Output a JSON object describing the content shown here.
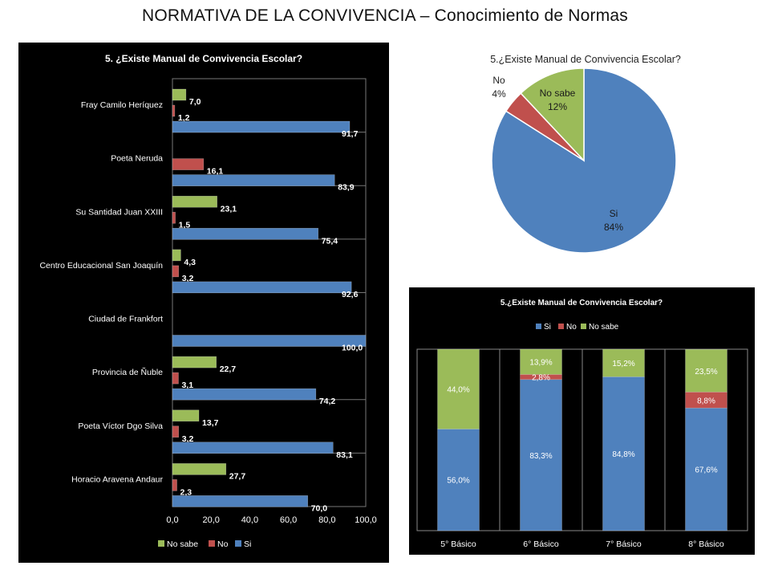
{
  "slide": {
    "title": "NORMATIVA DE LA CONVIVENCIA – Conocimiento de Normas"
  },
  "colors": {
    "si": "#4f81bd",
    "no": "#c0504d",
    "nosabe": "#9bbb59",
    "panel_bg": "#000000"
  },
  "chart_data": [
    {
      "type": "bar",
      "orientation": "horizontal",
      "title": "5. ¿Existe Manual de Convivencia Escolar?",
      "categories": [
        "Fray Camilo Heríquez",
        "Poeta Neruda",
        "Su Santidad Juan XXIII",
        "Centro Educacional San Joaquín",
        "Ciudad de Frankfort",
        "Provincia de Ñuble",
        "Poeta Víctor Dgo Silva",
        "Horacio Aravena Andaur"
      ],
      "series": [
        {
          "name": "No sabe",
          "values": [
            7.0,
            null,
            23.1,
            4.3,
            null,
            22.7,
            13.7,
            27.7
          ],
          "labels": [
            "7,0",
            "",
            "23,1",
            "4,3",
            "",
            "22,7",
            "13,7",
            "27,7"
          ]
        },
        {
          "name": "No",
          "values": [
            1.2,
            16.1,
            1.5,
            3.2,
            null,
            3.1,
            3.2,
            2.3
          ],
          "labels": [
            "1,2",
            "16,1",
            "1,5",
            "3,2",
            "",
            "3,1",
            "3,2",
            "2,3"
          ]
        },
        {
          "name": "Si",
          "values": [
            91.7,
            83.9,
            75.4,
            92.6,
            100.0,
            74.2,
            83.1,
            70.0
          ],
          "labels": [
            "91,7",
            "83,9",
            "75,4",
            "92,6",
            "100,0",
            "74,2",
            "83,1",
            "70,0"
          ]
        }
      ],
      "xlim": [
        0,
        100
      ],
      "xticks": [
        "0,0",
        "20,0",
        "40,0",
        "60,0",
        "80,0",
        "100,0"
      ],
      "legend": [
        "No sabe",
        "No",
        "Si"
      ],
      "legend_position": "bottom",
      "grid": true
    },
    {
      "type": "pie",
      "title": "5.¿Existe Manual de Convivencia Escolar?",
      "slices": [
        {
          "name": "Si",
          "value": 84,
          "label": "84%"
        },
        {
          "name": "No",
          "value": 4,
          "label": "4%"
        },
        {
          "name": "No sabe",
          "value": 12,
          "label": "12%"
        }
      ]
    },
    {
      "type": "bar",
      "stacked": true,
      "title": "5.¿Existe Manual de Convivencia Escolar?",
      "categories": [
        "5° Básico",
        "6° Básico",
        "7° Básico",
        "8° Básico"
      ],
      "series": [
        {
          "name": "Si",
          "values": [
            56.0,
            83.3,
            84.8,
            67.6
          ],
          "labels": [
            "56,0%",
            "83,3%",
            "84,8%",
            "67,6%"
          ]
        },
        {
          "name": "No",
          "values": [
            0,
            2.8,
            0,
            8.8
          ],
          "labels": [
            "",
            "2,8%",
            "",
            "8,8%"
          ]
        },
        {
          "name": "No sabe",
          "values": [
            44.0,
            13.9,
            15.2,
            23.5
          ],
          "labels": [
            "44,0%",
            "13,9%",
            "15,2%",
            "23,5%"
          ]
        }
      ],
      "ylim": [
        0,
        100
      ],
      "legend": [
        "Si",
        "No",
        "No sabe"
      ],
      "legend_position": "top",
      "grid": false
    }
  ]
}
